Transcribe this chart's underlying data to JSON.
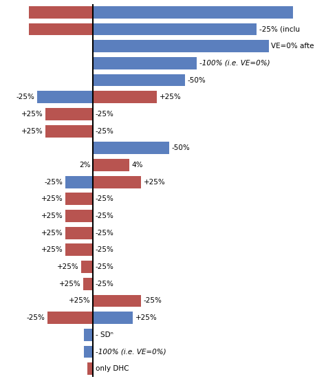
{
  "blue_color": "#5B7FBE",
  "red_color": "#B85450",
  "background_color": "#ffffff",
  "bars": [
    {
      "blue": 10.0,
      "red": -3.2,
      "label_left": "",
      "label_right": "",
      "italic_right": false
    },
    {
      "blue": 8.2,
      "red": -3.2,
      "label_left": "",
      "label_right": "-25% (inclu",
      "italic_right": false
    },
    {
      "blue": 8.8,
      "red": 0,
      "label_left": "",
      "label_right": "VE=0% afte",
      "italic_right": false
    },
    {
      "blue": 5.2,
      "red": 0,
      "label_left": "",
      "label_right": "-100% (i.e. VE=0%)",
      "italic_right": true
    },
    {
      "blue": 4.6,
      "red": 0,
      "label_left": "",
      "label_right": "-50%",
      "italic_right": false
    },
    {
      "blue": -2.8,
      "red": 3.2,
      "label_left": "-25%",
      "label_right": "+25%",
      "italic_right": false
    },
    {
      "blue": -2.4,
      "red": -2.4,
      "label_left": "+25%",
      "label_right": "-25%",
      "italic_right": false
    },
    {
      "blue": -2.4,
      "red": -2.4,
      "label_left": "+25%",
      "label_right": "-25%",
      "italic_right": false
    },
    {
      "blue": 3.8,
      "red": 0,
      "label_left": "",
      "label_right": "-50%",
      "italic_right": false
    },
    {
      "blue": 0,
      "red": 1.8,
      "label_left": "2%",
      "label_right": "4%",
      "italic_right": false
    },
    {
      "blue": -1.4,
      "red": 2.4,
      "label_left": "-25%",
      "label_right": "+25%",
      "italic_right": false
    },
    {
      "blue": -1.4,
      "red": -1.4,
      "label_left": "+25%",
      "label_right": "-25%",
      "italic_right": false
    },
    {
      "blue": -1.4,
      "red": -1.4,
      "label_left": "+25%",
      "label_right": "-25%",
      "italic_right": false
    },
    {
      "blue": -1.4,
      "red": -1.4,
      "label_left": "+25%",
      "label_right": "-25%",
      "italic_right": false
    },
    {
      "blue": -1.4,
      "red": -1.4,
      "label_left": "+25%",
      "label_right": "-25%",
      "italic_right": false
    },
    {
      "blue": -0.6,
      "red": -0.6,
      "label_left": "+25%",
      "label_right": "-25%",
      "italic_right": false
    },
    {
      "blue": -0.5,
      "red": -0.5,
      "label_left": "+25%",
      "label_right": "-25%",
      "italic_right": false
    },
    {
      "blue": 2.4,
      "red": 2.4,
      "label_left": "+25%",
      "label_right": "-25%",
      "italic_right": false
    },
    {
      "blue": 2.0,
      "red": -2.3,
      "label_left": "-25%",
      "label_right": "+25%",
      "italic_right": false
    },
    {
      "blue": -0.45,
      "red": 0,
      "label_left": "",
      "label_right": "- SDⁿ",
      "italic_right": false
    },
    {
      "blue": -0.45,
      "red": 0,
      "label_left": "",
      "label_right": "-100% (i.e. VE=0%)",
      "italic_right": true
    },
    {
      "blue": 0,
      "red": -0.3,
      "label_left": "",
      "label_right": "only DHC",
      "italic_right": false
    }
  ],
  "xlim": [
    -4.5,
    11.5
  ],
  "figsize": [
    4.74,
    5.54
  ],
  "dpi": 100,
  "vline_x": 0,
  "label_fontsize": 7.5,
  "bar_height": 0.72
}
